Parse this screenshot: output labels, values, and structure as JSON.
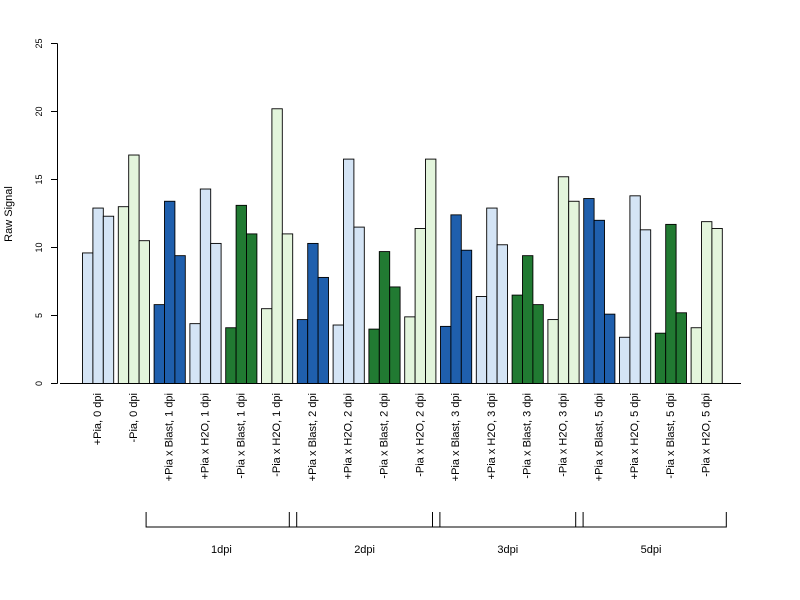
{
  "chart_data": {
    "type": "bar",
    "title": "",
    "xlabel": "",
    "ylabel": "Raw Signal",
    "ylim": [
      0,
      25
    ],
    "yticks": [
      "0",
      "5",
      "10",
      "15",
      "20",
      "25"
    ],
    "grid": false,
    "legend": "none",
    "colors": {
      "light_blue": "#d4e4f5",
      "dark_blue": "#1f5fad",
      "light_green": "#e3f5dc",
      "dark_green": "#217a32",
      "outline": "#000000"
    },
    "categories": [
      {
        "label": "+Pia, 0 dpi",
        "color": "light_blue",
        "values": [
          9.6,
          12.9,
          12.3
        ]
      },
      {
        "label": "-Pia, 0 dpi",
        "color": "light_green",
        "values": [
          13.0,
          16.8,
          10.5
        ]
      },
      {
        "label": "+Pia x Blast, 1 dpi",
        "color": "dark_blue",
        "values": [
          5.8,
          13.4,
          9.4
        ]
      },
      {
        "label": "+Pia x H2O, 1 dpi",
        "color": "light_blue",
        "values": [
          4.4,
          14.3,
          10.3
        ]
      },
      {
        "label": "-Pia x Blast, 1 dpi",
        "color": "dark_green",
        "values": [
          4.1,
          13.1,
          11.0
        ]
      },
      {
        "label": "-Pia x H2O, 1 dpi",
        "color": "light_green",
        "values": [
          5.5,
          20.2,
          11.0
        ]
      },
      {
        "label": "+Pia x Blast, 2 dpi",
        "color": "dark_blue",
        "values": [
          4.7,
          10.3,
          7.8
        ]
      },
      {
        "label": "+Pia x H2O, 2 dpi",
        "color": "light_blue",
        "values": [
          4.3,
          16.5,
          11.5
        ]
      },
      {
        "label": "-Pia x Blast, 2 dpi",
        "color": "dark_green",
        "values": [
          4.0,
          9.7,
          7.1
        ]
      },
      {
        "label": "-Pia x H2O, 2 dpi",
        "color": "light_green",
        "values": [
          4.9,
          11.4,
          16.5
        ]
      },
      {
        "label": "+Pia x Blast, 3 dpi",
        "color": "dark_blue",
        "values": [
          4.2,
          12.4,
          9.8
        ]
      },
      {
        "label": "+Pia x H2O, 3 dpi",
        "color": "light_blue",
        "values": [
          6.4,
          12.9,
          10.2
        ]
      },
      {
        "label": "-Pia x Blast, 3 dpi",
        "color": "dark_green",
        "values": [
          6.5,
          9.4,
          5.8
        ]
      },
      {
        "label": "-Pia x H2O, 3 dpi",
        "color": "light_green",
        "values": [
          4.7,
          15.2,
          13.4
        ]
      },
      {
        "label": "+Pia x Blast, 5 dpi",
        "color": "dark_blue",
        "values": [
          13.6,
          12.0,
          5.1
        ]
      },
      {
        "label": "+Pia x H2O, 5 dpi",
        "color": "light_blue",
        "values": [
          3.4,
          13.8,
          11.3
        ]
      },
      {
        "label": "-Pia x Blast, 5 dpi",
        "color": "dark_green",
        "values": [
          3.7,
          11.7,
          5.2
        ]
      },
      {
        "label": "-Pia x H2O, 5 dpi",
        "color": "light_green",
        "values": [
          4.1,
          11.9,
          11.4
        ]
      }
    ],
    "groups": [
      {
        "label": "1dpi",
        "first": 2,
        "last": 5
      },
      {
        "label": "2dpi",
        "first": 6,
        "last": 9
      },
      {
        "label": "3dpi",
        "first": 10,
        "last": 13
      },
      {
        "label": "5dpi",
        "first": 14,
        "last": 17
      }
    ]
  }
}
